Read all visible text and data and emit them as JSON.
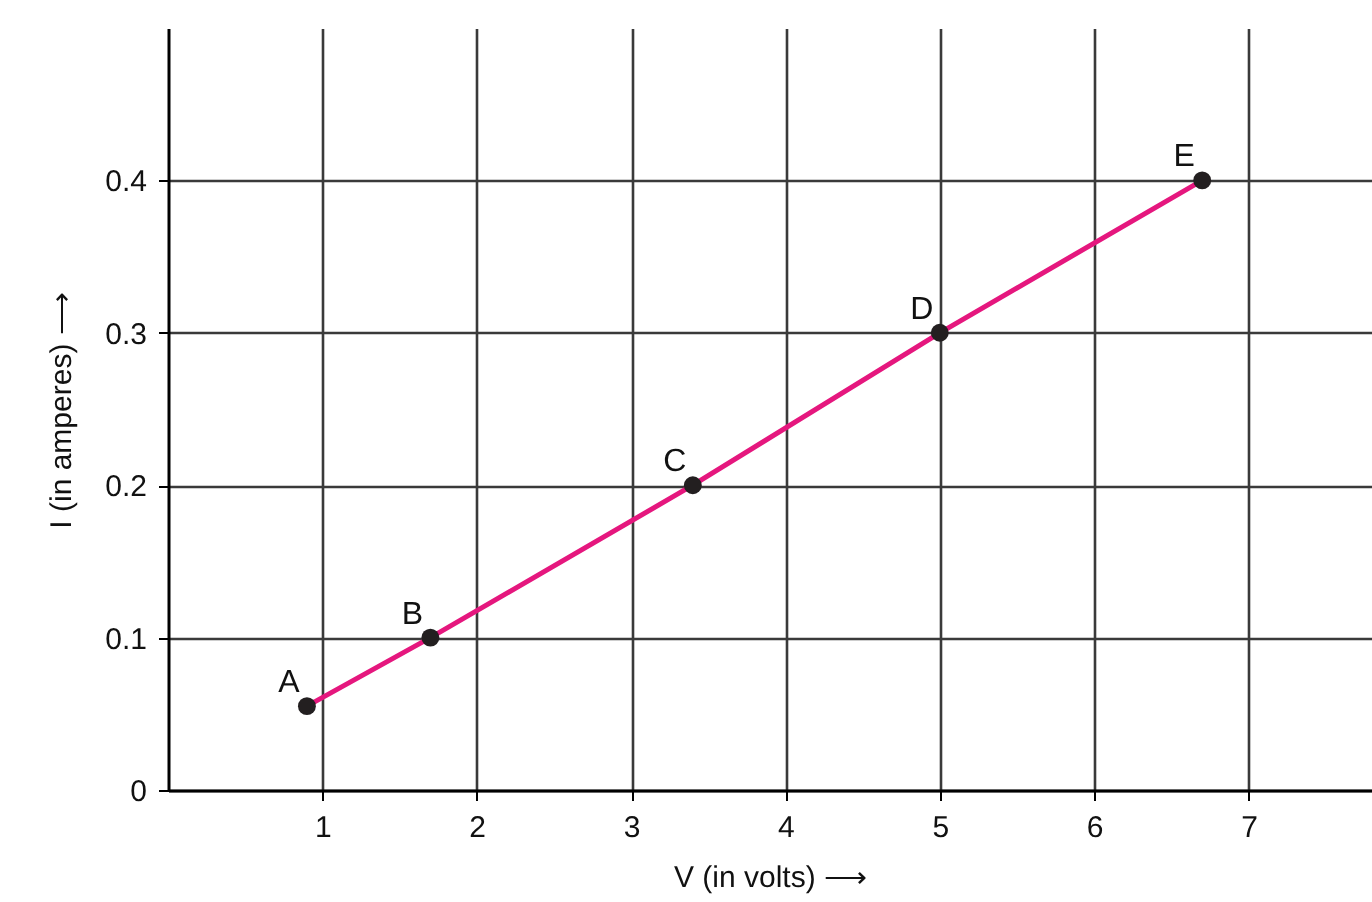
{
  "chart_data": {
    "type": "line",
    "xlabel": "V (in volts) ⟶",
    "ylabel": "I (in amperes) ⟶",
    "x": [
      0.9,
      1.7,
      3.4,
      5.0,
      6.7
    ],
    "series": [
      {
        "type": "line",
        "color": "#e5177e",
        "marker": "none",
        "values": [
          0.055,
          0.1,
          0.2,
          0.3,
          0.4
        ]
      },
      {
        "type": "scatter",
        "color": "#231f20",
        "marker": "circle",
        "values": [
          0.055,
          0.1,
          0.2,
          0.3,
          0.4
        ]
      }
    ],
    "annotations": [
      {
        "text": "A",
        "x": 0.9,
        "y": 0.055
      },
      {
        "text": "B",
        "x": 1.7,
        "y": 0.1
      },
      {
        "text": "C",
        "x": 3.4,
        "y": 0.2
      },
      {
        "text": "D",
        "x": 5.0,
        "y": 0.3
      },
      {
        "text": "E",
        "x": 6.7,
        "y": 0.4
      }
    ],
    "xlim": [
      0,
      7.8
    ],
    "ylim": [
      0,
      0.5
    ],
    "xticks": [
      1,
      2,
      3,
      4,
      5,
      6,
      7
    ],
    "yticks": [
      0,
      0.1,
      0.2,
      0.3,
      0.4
    ],
    "grid": true
  }
}
